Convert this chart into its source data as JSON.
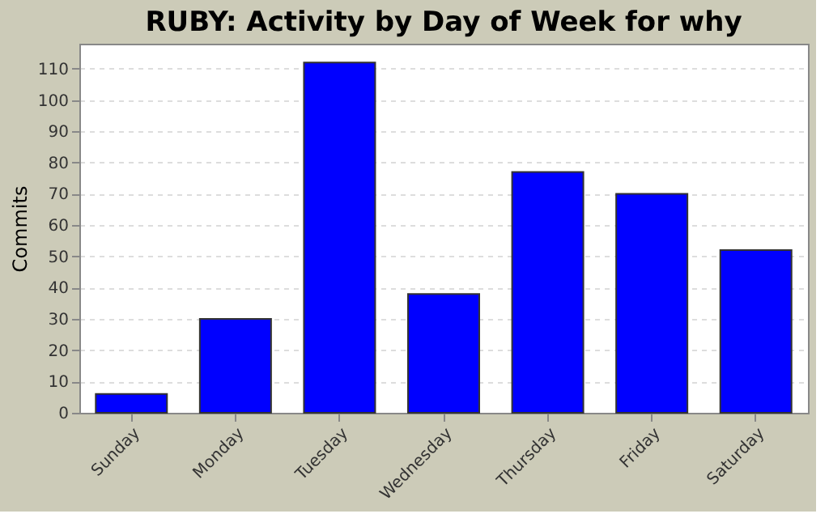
{
  "chart_data": {
    "type": "bar",
    "title": "RUBY: Activity by Day of Week for why",
    "ylabel": "Commits",
    "categories": [
      "Sunday",
      "Monday",
      "Tuesday",
      "Wednesday",
      "Thursday",
      "Friday",
      "Saturday"
    ],
    "values": [
      6,
      30,
      112,
      38,
      77,
      70,
      52
    ],
    "color": "#0000ff",
    "ylim": [
      0,
      118
    ],
    "yticks": [
      0,
      10,
      20,
      30,
      40,
      50,
      60,
      70,
      80,
      90,
      100,
      110
    ],
    "grid": "y"
  }
}
